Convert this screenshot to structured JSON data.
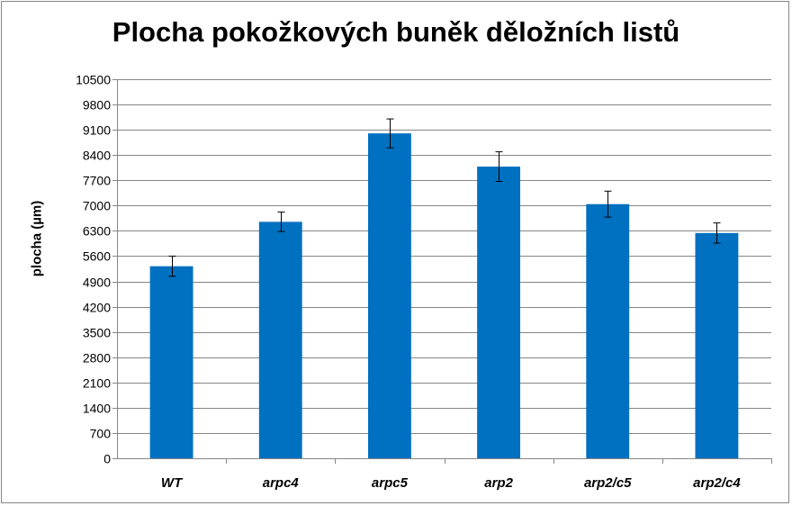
{
  "chart_data": {
    "type": "bar",
    "title": "Plocha pokožkových buněk děložních listů",
    "xlabel": "",
    "ylabel": "plocha (µm)",
    "categories": [
      "WT",
      "arpc4",
      "arpc5",
      "arp2",
      "arp2/c5",
      "arp2/c4"
    ],
    "values": [
      5320,
      6550,
      9000,
      8080,
      7040,
      6240
    ],
    "error": [
      280,
      270,
      400,
      410,
      360,
      280
    ],
    "yticks": [
      0,
      700,
      1400,
      2100,
      2800,
      3500,
      4200,
      4900,
      5600,
      6300,
      7000,
      7700,
      8400,
      9100,
      9800,
      10500
    ],
    "ylim": [
      0,
      10500
    ],
    "grid": true,
    "legend": "none",
    "bar_color": "#0070C0"
  }
}
